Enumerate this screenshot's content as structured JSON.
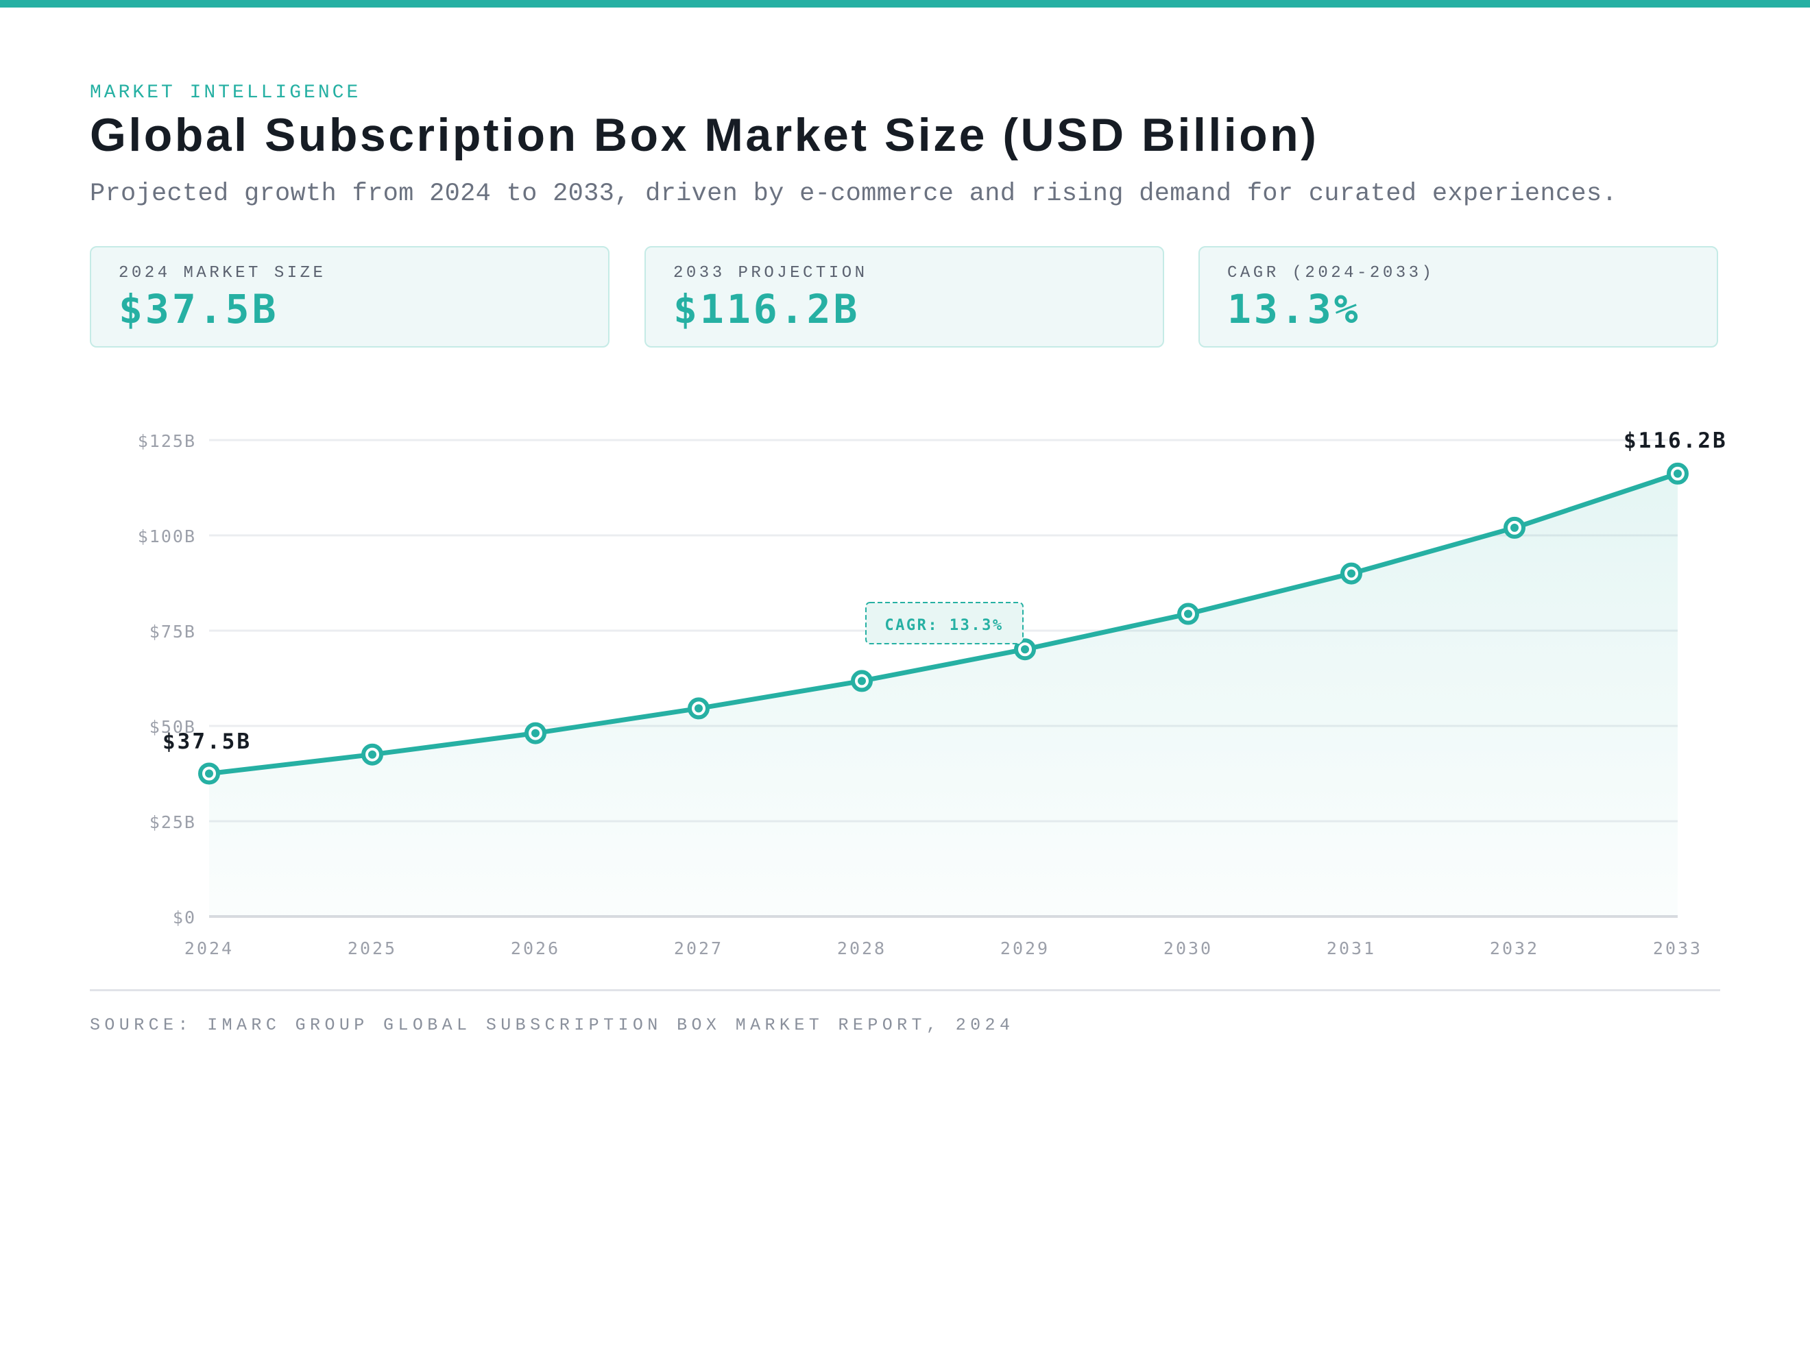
{
  "header": {
    "eyebrow": "MARKET INTELLIGENCE",
    "title": "Global Subscription Box Market Size (USD Billion)",
    "subtitle": "Projected growth from 2024 to 2033, driven by e-commerce and rising demand for curated experiences."
  },
  "cards": [
    {
      "label": "2024 MARKET SIZE",
      "value": "$37.5B"
    },
    {
      "label": "2033 PROJECTION",
      "value": "$116.2B"
    },
    {
      "label": "CAGR (2024-2033)",
      "value": "13.3%"
    }
  ],
  "chart_data": {
    "type": "area",
    "categories": [
      "2024",
      "2025",
      "2026",
      "2027",
      "2028",
      "2029",
      "2030",
      "2031",
      "2032",
      "2033"
    ],
    "values": [
      37.5,
      42.5,
      48.1,
      54.6,
      61.8,
      70.1,
      79.4,
      90.0,
      102.0,
      116.2
    ],
    "ylim": [
      0,
      125
    ],
    "yticks": [
      0,
      25,
      50,
      75,
      100,
      125
    ],
    "ytick_labels": [
      "$0",
      "$25B",
      "$50B",
      "$75B",
      "$100B",
      "$125B"
    ],
    "grid": true,
    "annotations": {
      "start_label": "$37.5B",
      "end_label": "$116.2B",
      "cagr_label": "CAGR: 13.3%"
    },
    "colors": {
      "line": "#26b0a3",
      "grid": "#ebedf0",
      "axis_text": "#9ca0aa"
    }
  },
  "footer": {
    "source": "SOURCE: IMARC GROUP GLOBAL SUBSCRIPTION BOX MARKET REPORT, 2024"
  }
}
